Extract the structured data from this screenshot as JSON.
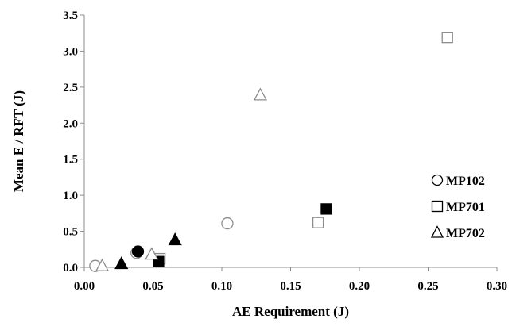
{
  "chart_data": {
    "type": "scatter",
    "xlabel": "AE Requirement (J)",
    "ylabel": "Mean E / RFT (J)",
    "xlim": [
      0,
      0.3
    ],
    "ylim": [
      0,
      3.5
    ],
    "x_ticks": [
      "0.00",
      "0.05",
      "0.10",
      "0.15",
      "0.20",
      "0.25",
      "0.30"
    ],
    "y_ticks": [
      "0.0",
      "0.5",
      "1.0",
      "1.5",
      "2.0",
      "2.5",
      "3.0",
      "3.5"
    ],
    "grid": false,
    "legend_position": "right",
    "series": [
      {
        "name": "MP102",
        "marker": "circle",
        "filled": false,
        "points": [
          [
            0.008,
            0.02
          ],
          [
            0.038,
            0.2
          ],
          [
            0.104,
            0.61
          ]
        ]
      },
      {
        "name": "MP102",
        "marker": "circle",
        "filled": true,
        "points": [
          [
            0.039,
            0.22
          ]
        ]
      },
      {
        "name": "MP701",
        "marker": "square",
        "filled": false,
        "points": [
          [
            0.055,
            0.12
          ],
          [
            0.17,
            0.62
          ],
          [
            0.264,
            3.19
          ]
        ]
      },
      {
        "name": "MP701",
        "marker": "square",
        "filled": true,
        "points": [
          [
            0.054,
            0.08
          ],
          [
            0.176,
            0.81
          ]
        ]
      },
      {
        "name": "MP702",
        "marker": "triangle",
        "filled": false,
        "points": [
          [
            0.013,
            0.02
          ],
          [
            0.049,
            0.18
          ],
          [
            0.128,
            2.39
          ]
        ]
      },
      {
        "name": "MP702",
        "marker": "triangle",
        "filled": true,
        "points": [
          [
            0.027,
            0.05
          ],
          [
            0.066,
            0.38
          ]
        ]
      }
    ],
    "legend": [
      {
        "marker": "circle",
        "label": "MP102"
      },
      {
        "marker": "square",
        "label": "MP701"
      },
      {
        "marker": "triangle",
        "label": "MP702"
      }
    ]
  }
}
